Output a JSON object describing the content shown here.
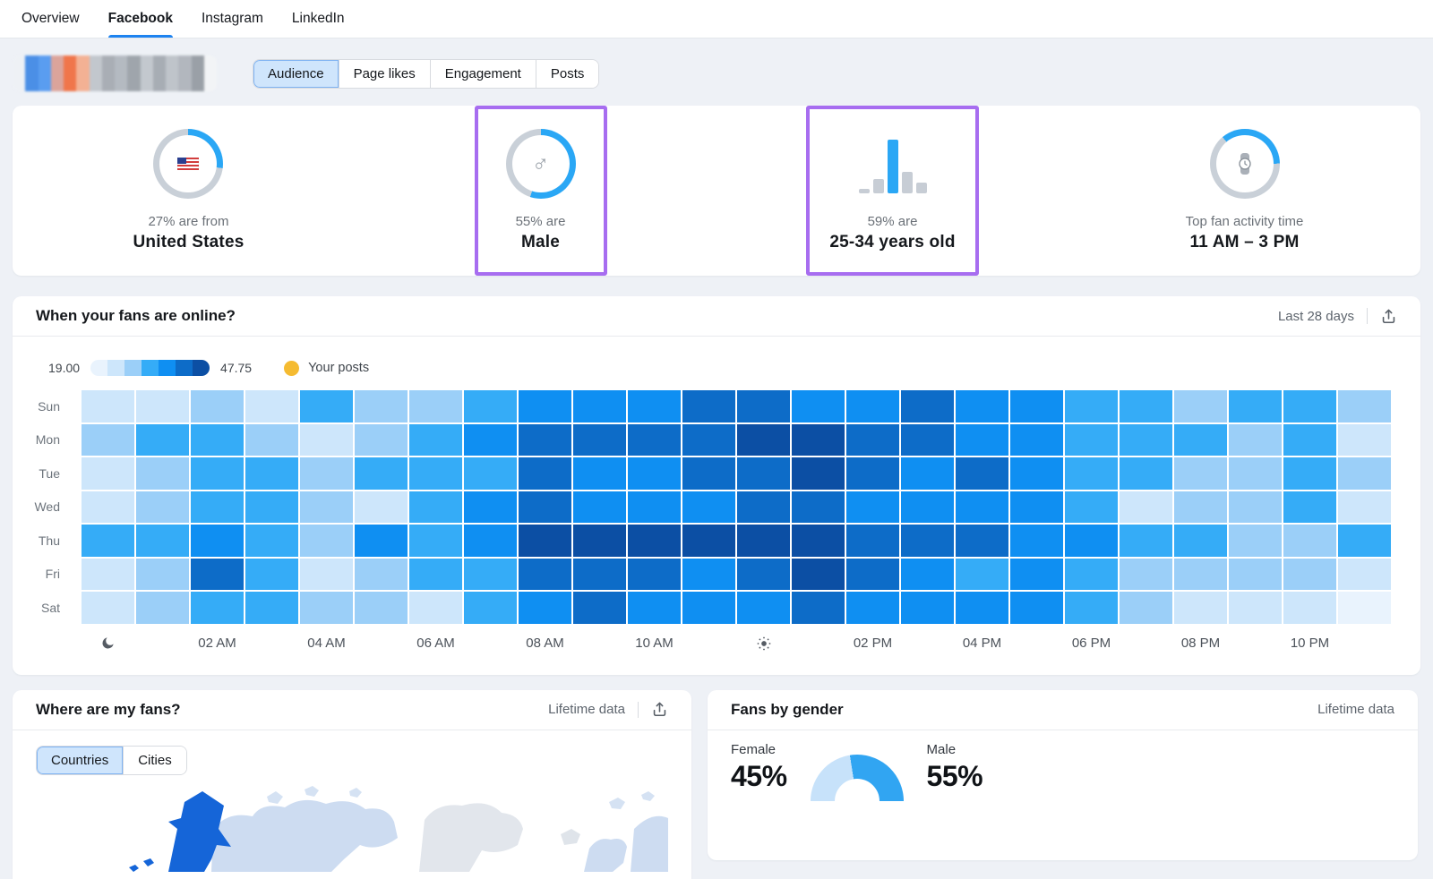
{
  "colors": {
    "accent_blue": "#2aa7f5",
    "donut_track": "#c9d0d8",
    "nav_underline": "#1d83f0",
    "purple_highlight": "#a76df0"
  },
  "nav": {
    "items": [
      {
        "label": "Overview",
        "active": false
      },
      {
        "label": "Facebook",
        "active": true
      },
      {
        "label": "Instagram",
        "active": false
      },
      {
        "label": "LinkedIn",
        "active": false
      }
    ]
  },
  "profile": {
    "blur_colors": [
      "#eef1f5",
      "#4b8fe6",
      "#5a9df0",
      "#dba49b",
      "#f0764b",
      "#f3b194",
      "#c2c7cd",
      "#a9aeb5",
      "#b4bac1",
      "#9fa5ac",
      "#c3c8ce",
      "#a7adb4",
      "#bfc4ca",
      "#b2b7be",
      "#9aa0a7",
      "#f2f4f6"
    ],
    "tabs": [
      {
        "label": "Audience",
        "selected": true
      },
      {
        "label": "Page likes",
        "selected": false
      },
      {
        "label": "Engagement",
        "selected": false
      },
      {
        "label": "Posts",
        "selected": false
      }
    ]
  },
  "stats": [
    {
      "caption": "27% are from",
      "value": "United States",
      "icon": "us-flag",
      "donut_percent": 27,
      "donut_from": 0,
      "highlighted": false
    },
    {
      "caption": "55% are",
      "value": "Male",
      "icon": "male-symbol",
      "donut_percent": 55,
      "donut_from": 0,
      "highlighted": true
    },
    {
      "caption": "59% are",
      "value": "25-34 years old",
      "icon": "bar-chart",
      "highlighted": true,
      "bars": [
        {
          "h": 5,
          "hl": false
        },
        {
          "h": 16,
          "hl": false
        },
        {
          "h": 60,
          "hl": true
        },
        {
          "h": 24,
          "hl": false
        },
        {
          "h": 12,
          "hl": false
        }
      ]
    },
    {
      "caption": "Top fan activity time",
      "value": "11 AM – 3 PM",
      "icon": "watch",
      "donut_percent": 36,
      "donut_from": -40,
      "highlighted": false
    }
  ],
  "heatmap_panel": {
    "title": "When your fans are online?",
    "range_label": "Last 28 days",
    "legend": {
      "min": "19.00",
      "max": "47.75",
      "posts_label": "Your posts",
      "posts_color": "#f5bb31"
    },
    "chart_data": {
      "type": "heatmap",
      "title": "When your fans are online?",
      "scale_min": 19.0,
      "scale_max": 47.75,
      "unit": "fans online intensity level (1 = lightest, 7 = darkest)",
      "rows": [
        "Sun",
        "Mon",
        "Tue",
        "Wed",
        "Thu",
        "Fri",
        "Sat"
      ],
      "columns": [
        "12 AM",
        "1 AM",
        "2 AM",
        "3 AM",
        "4 AM",
        "5 AM",
        "6 AM",
        "7 AM",
        "8 AM",
        "9 AM",
        "10 AM",
        "11 AM",
        "12 PM",
        "1 PM",
        "2 PM",
        "3 PM",
        "4 PM",
        "5 PM",
        "6 PM",
        "7 PM",
        "8 PM",
        "9 PM",
        "10 PM",
        "11 PM"
      ],
      "palette": [
        "#e9f3fd",
        "#cde6fb",
        "#9bcff8",
        "#35acf7",
        "#0f8ff2",
        "#0d6cc8",
        "#0c4fa4"
      ],
      "values": [
        [
          2,
          2,
          3,
          2,
          4,
          3,
          3,
          4,
          5,
          5,
          5,
          6,
          6,
          5,
          5,
          6,
          5,
          5,
          4,
          4,
          3,
          4,
          4,
          3
        ],
        [
          3,
          4,
          4,
          3,
          2,
          3,
          4,
          5,
          6,
          6,
          6,
          6,
          7,
          7,
          6,
          6,
          5,
          5,
          4,
          4,
          4,
          3,
          4,
          2
        ],
        [
          2,
          3,
          4,
          4,
          3,
          4,
          4,
          4,
          6,
          5,
          5,
          6,
          6,
          7,
          6,
          5,
          6,
          5,
          4,
          4,
          3,
          3,
          4,
          3
        ],
        [
          2,
          3,
          4,
          4,
          3,
          2,
          4,
          5,
          6,
          5,
          5,
          5,
          6,
          6,
          5,
          5,
          5,
          5,
          4,
          2,
          3,
          3,
          4,
          2
        ],
        [
          4,
          4,
          5,
          4,
          3,
          5,
          4,
          5,
          7,
          7,
          7,
          7,
          7,
          7,
          6,
          6,
          6,
          5,
          5,
          4,
          4,
          3,
          3,
          4
        ],
        [
          2,
          3,
          6,
          4,
          2,
          3,
          4,
          4,
          6,
          6,
          6,
          5,
          6,
          7,
          6,
          5,
          4,
          5,
          4,
          3,
          3,
          3,
          3,
          2
        ],
        [
          2,
          3,
          4,
          4,
          3,
          3,
          2,
          4,
          5,
          6,
          5,
          5,
          5,
          6,
          5,
          5,
          5,
          5,
          4,
          3,
          2,
          2,
          2,
          1
        ]
      ]
    },
    "axis": [
      {
        "col": 0,
        "icon": "moon"
      },
      {
        "col": 2,
        "label": "02 AM"
      },
      {
        "col": 4,
        "label": "04 AM"
      },
      {
        "col": 6,
        "label": "06 AM"
      },
      {
        "col": 8,
        "label": "08 AM"
      },
      {
        "col": 10,
        "label": "10 AM"
      },
      {
        "col": 12,
        "icon": "sun"
      },
      {
        "col": 14,
        "label": "02 PM"
      },
      {
        "col": 16,
        "label": "04 PM"
      },
      {
        "col": 18,
        "label": "06 PM"
      },
      {
        "col": 20,
        "label": "08 PM"
      },
      {
        "col": 22,
        "label": "10 PM"
      }
    ]
  },
  "where_panel": {
    "title": "Where are my fans?",
    "range_label": "Lifetime data",
    "tabs": [
      {
        "label": "Countries",
        "selected": true
      },
      {
        "label": "Cities",
        "selected": false
      }
    ],
    "map_highlight_color": "#1565d8",
    "map_land_color": "#cddcf1",
    "map_far_land_color": "#e2e6ec"
  },
  "gender_panel": {
    "title": "Fans by gender",
    "range_label": "Lifetime data",
    "female_label": "Female",
    "female_value": "45%",
    "male_label": "Male",
    "male_value": "55%",
    "chart_data": {
      "type": "pie",
      "style": "half-donut-gauge",
      "slices": [
        {
          "name": "Female",
          "value": 45,
          "color": "#c7e2fa"
        },
        {
          "name": "Male",
          "value": 55,
          "color": "#31a5f2"
        }
      ]
    }
  }
}
